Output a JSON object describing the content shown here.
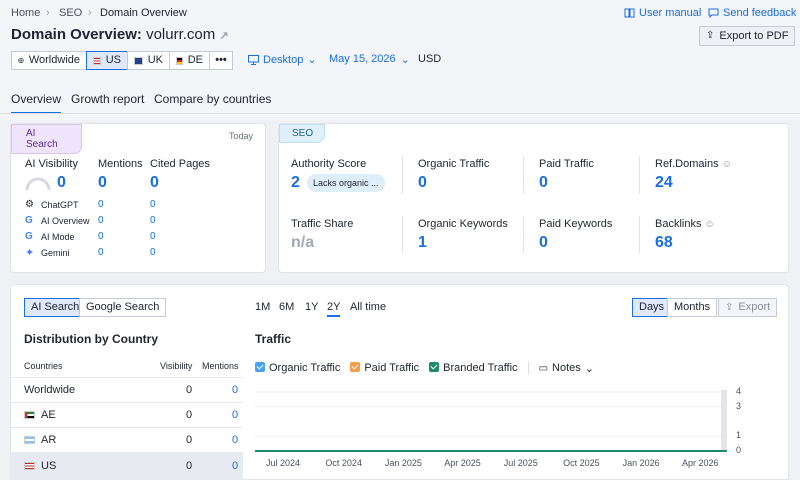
{
  "breadcrumb": [
    "Home",
    "SEO",
    "Domain Overview"
  ],
  "header_links": {
    "user_manual": "User manual",
    "send_feedback": "Send feedback"
  },
  "title": {
    "label": "Domain Overview:",
    "domain": "volurr.com"
  },
  "export_pdf": "Export to PDF",
  "db_chips": {
    "worldwide": "Worldwide",
    "us": "US",
    "uk": "UK",
    "de": "DE",
    "more": "•••"
  },
  "filters": {
    "device": "Desktop",
    "date": "May 15, 2026",
    "currency": "USD"
  },
  "tabs": [
    "Overview",
    "Growth report",
    "Compare by countries"
  ],
  "ai_card": {
    "tag": "AI Search",
    "date": "Today",
    "headers": [
      "AI Visibility",
      "Mentions",
      "Cited Pages"
    ],
    "values": [
      "0",
      "0",
      "0"
    ],
    "rows": [
      {
        "name": "ChatGPT",
        "icon": "chatgpt-icon",
        "mentions": "0",
        "cited": "0"
      },
      {
        "name": "AI Overview",
        "icon": "google-icon",
        "mentions": "0",
        "cited": "0"
      },
      {
        "name": "AI Mode",
        "icon": "google-icon",
        "mentions": "0",
        "cited": "0"
      },
      {
        "name": "Gemini",
        "icon": "gemini-icon",
        "mentions": "0",
        "cited": "0"
      }
    ]
  },
  "seo_card": {
    "tag": "SEO",
    "authority_label": "Authority Score",
    "authority_value": "2",
    "authority_badge": "Lacks organic ...",
    "organic_traffic_label": "Organic Traffic",
    "organic_traffic_value": "0",
    "paid_traffic_label": "Paid Traffic",
    "paid_traffic_value": "0",
    "ref_domains_label": "Ref.Domains",
    "ref_domains_value": "24",
    "traffic_share_label": "Traffic Share",
    "traffic_share_value": "n/a",
    "organic_keywords_label": "Organic Keywords",
    "organic_keywords_value": "1",
    "paid_keywords_label": "Paid Keywords",
    "paid_keywords_value": "0",
    "backlinks_label": "Backlinks",
    "backlinks_value": "68"
  },
  "bottom": {
    "toggle": [
      "AI Search",
      "Google Search"
    ],
    "dist_title": "Distribution by Country",
    "table_headers": [
      "Countries",
      "Visibility",
      "Mentions"
    ],
    "table_rows": [
      {
        "country": "Worldwide",
        "visibility": "0",
        "mentions": "0",
        "flag": ""
      },
      {
        "country": "AE",
        "visibility": "0",
        "mentions": "0",
        "flag": "ae"
      },
      {
        "country": "AR",
        "visibility": "0",
        "mentions": "0",
        "flag": "ar"
      },
      {
        "country": "US",
        "visibility": "0",
        "mentions": "0",
        "flag": "us"
      }
    ],
    "ranges": [
      "1M",
      "6M",
      "1Y",
      "2Y",
      "All time"
    ],
    "active_range": "2Y",
    "granularity": [
      "Days",
      "Months"
    ],
    "export": "Export",
    "traffic_title": "Traffic",
    "legend": [
      {
        "label": "Organic Traffic",
        "color": "#4aa3f0"
      },
      {
        "label": "Paid Traffic",
        "color": "#f39c4a"
      },
      {
        "label": "Branded Traffic",
        "color": "#1f8a6a"
      }
    ],
    "notes": "Notes"
  },
  "chart_data": {
    "type": "line",
    "x": [
      "Jul 2024",
      "Oct 2024",
      "Jan 2025",
      "Apr 2025",
      "Jul 2025",
      "Oct 2025",
      "Jan 2026",
      "Apr 2026"
    ],
    "series": [
      {
        "name": "Organic Traffic",
        "values": [
          0,
          0,
          0,
          0,
          0,
          0,
          0,
          0
        ]
      },
      {
        "name": "Branded Traffic",
        "values": [
          0,
          0,
          0,
          0,
          0,
          0,
          0,
          0
        ]
      }
    ],
    "y_ticks": [
      "4",
      "3",
      "1",
      "0"
    ],
    "ylim": [
      0,
      4
    ],
    "title": "Traffic"
  }
}
